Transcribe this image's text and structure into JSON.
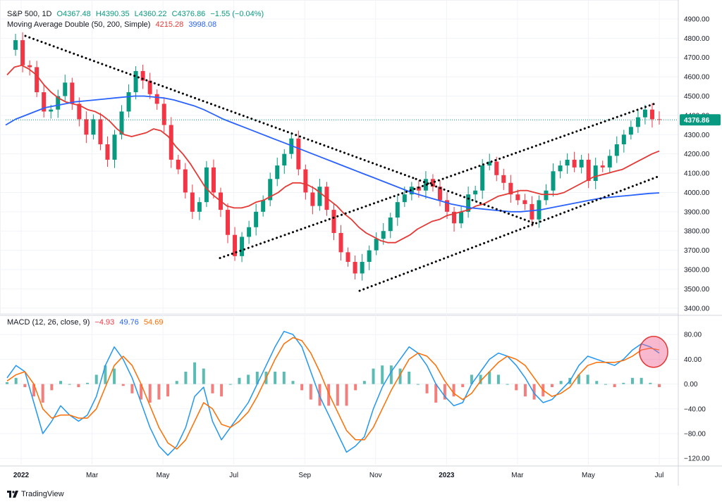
{
  "price_legend": {
    "symbol": "S&P 500, 1D",
    "open": "O4367.48",
    "high": "H4390.35",
    "low": "L4360.22",
    "close": "C4376.86",
    "change": "−1.55 (−0.04%)"
  },
  "ma_legend": {
    "label": "Moving Average Double (50, 200, Simple)",
    "ma50": "4215.28",
    "ma200": "3998.08"
  },
  "macd_legend": {
    "label": "MACD (12, 26, close, 9)",
    "hist": "−4.93",
    "macd": "49.76",
    "signal": "54.69"
  },
  "last_price_label": "4376.86",
  "branding": "TradingView",
  "colors": {
    "up": "#089981",
    "down": "#f23645",
    "ma50": "#e53935",
    "ma200": "#2962ff",
    "macd_line": "#2196f3",
    "signal_line": "#ff6d00",
    "trendline": "#000000",
    "highlight": "#f06292"
  },
  "chart_data": [
    {
      "type": "line",
      "title": "S&P 500, 1D",
      "x_ticks": [
        "2022",
        "Mar",
        "May",
        "Jul",
        "Sep",
        "Nov",
        "2023",
        "Mar",
        "May",
        "Jul"
      ],
      "y_ticks": [
        "4900.00",
        "4800.00",
        "4700.00",
        "4600.00",
        "4500.00",
        "4400.00",
        "4300.00",
        "4200.00",
        "4100.00",
        "4000.00",
        "3900.00",
        "3800.00",
        "3700.00",
        "3600.00",
        "3500.00",
        "3400.00"
      ],
      "ylim": [
        3370,
        4940
      ],
      "series": [
        {
          "name": "S&P 500",
          "values": [
            4740,
            4790,
            4660,
            4650,
            4520,
            4420,
            4430,
            4500,
            4570,
            4460,
            4380,
            4300,
            4380,
            4250,
            4170,
            4300,
            4420,
            4520,
            4630,
            4580,
            4510,
            4460,
            4350,
            4170,
            4120,
            4000,
            3900,
            3950,
            4130,
            4000,
            3910,
            3780,
            3670,
            3770,
            3820,
            3900,
            3960,
            4070,
            4140,
            4200,
            4280,
            4120,
            4000,
            3930,
            4030,
            3910,
            3790,
            3690,
            3640,
            3580,
            3640,
            3700,
            3760,
            3800,
            3870,
            3950,
            3990,
            4030,
            4010,
            4070,
            4030,
            3960,
            3900,
            3840,
            3900,
            3990,
            4010,
            4140,
            4160,
            4090,
            4050,
            3990,
            3960,
            3940,
            3860,
            3960,
            4010,
            4110,
            4140,
            4170,
            4130,
            4170,
            4060,
            4140,
            4130,
            4190,
            4250,
            4300,
            4340,
            4390,
            4430,
            4380,
            4377
          ]
        },
        {
          "name": "",
          "values": [
            4610,
            4650,
            4660,
            4640,
            4610,
            4560,
            4520,
            4490,
            4470,
            4460,
            4450,
            4430,
            4420,
            4400,
            4370,
            4330,
            4300,
            4290,
            4300,
            4310,
            4330,
            4320,
            4290,
            4240,
            4200,
            4150,
            4090,
            4030,
            3990,
            3960,
            3930,
            3920,
            3920,
            3930,
            3950,
            3960,
            3980,
            4000,
            4030,
            4050,
            4050,
            4040,
            4020,
            3990,
            3960,
            3930,
            3890,
            3860,
            3820,
            3790,
            3770,
            3750,
            3740,
            3740,
            3760,
            3780,
            3810,
            3830,
            3850,
            3860,
            3880,
            3890,
            3900,
            3910,
            3930,
            3940,
            3960,
            3980,
            3990,
            4000,
            4010,
            4010,
            4000,
            3990,
            3990,
            3990,
            4000,
            4020,
            4040,
            4060,
            4080,
            4090,
            4100,
            4110,
            4120,
            4140,
            4160,
            4180,
            4200,
            4215
          ]
        },
        {
          "name": "",
          "values": [
            4350,
            4380,
            4400,
            4420,
            4440,
            4450,
            4460,
            4470,
            4475,
            4480,
            4485,
            4490,
            4495,
            4500,
            4500,
            4495,
            4490,
            4480,
            4465,
            4450,
            4430,
            4405,
            4380,
            4360,
            4340,
            4320,
            4300,
            4280,
            4260,
            4240,
            4220,
            4200,
            4180,
            4160,
            4140,
            4120,
            4100,
            4080,
            4060,
            4040,
            4020,
            4000,
            3985,
            3970,
            3955,
            3940,
            3930,
            3920,
            3915,
            3910,
            3905,
            3900,
            3900,
            3905,
            3910,
            3920,
            3930,
            3940,
            3950,
            3960,
            3970,
            3975,
            3980,
            3985,
            3990,
            3995,
            3998
          ]
        }
      ]
    },
    {
      "type": "line",
      "title": "MACD (12, 26, close, 9)",
      "y_ticks": [
        "80.00",
        "40.00",
        "0.00",
        "−40.00",
        "−80.00",
        "−120.00"
      ],
      "ylim": [
        -130,
        95
      ],
      "series": [
        {
          "name": "",
          "values": [
            10,
            30,
            20,
            -30,
            -80,
            -60,
            -35,
            -50,
            -60,
            -50,
            -20,
            30,
            60,
            40,
            10,
            -30,
            -70,
            -100,
            -115,
            -100,
            -70,
            -20,
            -5,
            -60,
            -90,
            -70,
            -50,
            -30,
            0,
            30,
            60,
            85,
            80,
            60,
            20,
            -20,
            -50,
            -80,
            -110,
            -100,
            -85,
            -40,
            -5,
            20,
            40,
            60,
            50,
            30,
            0,
            -20,
            -35,
            -30,
            0,
            20,
            40,
            50,
            45,
            30,
            10,
            -15,
            -30,
            -25,
            -10,
            5,
            30,
            45,
            40,
            35,
            30,
            40,
            55,
            65,
            60,
            50
          ]
        },
        {
          "name": "",
          "values": [
            5,
            15,
            20,
            0,
            -40,
            -55,
            -50,
            -50,
            -55,
            -55,
            -40,
            -5,
            30,
            45,
            30,
            0,
            -35,
            -70,
            -95,
            -105,
            -90,
            -60,
            -30,
            -40,
            -65,
            -70,
            -60,
            -45,
            -20,
            10,
            40,
            65,
            75,
            70,
            50,
            20,
            -15,
            -45,
            -75,
            -90,
            -90,
            -70,
            -40,
            -10,
            15,
            40,
            50,
            45,
            30,
            5,
            -15,
            -25,
            -15,
            5,
            20,
            35,
            45,
            40,
            30,
            10,
            -10,
            -20,
            -15,
            -5,
            15,
            30,
            35,
            35,
            35,
            38,
            45,
            55,
            58,
            55
          ]
        },
        {
          "name": "",
          "values": [
            3,
            10,
            -5,
            -20,
            -30,
            -10,
            5,
            0,
            -5,
            2,
            15,
            30,
            25,
            -3,
            -15,
            -25,
            -30,
            -25,
            -20,
            5,
            20,
            35,
            25,
            -15,
            -20,
            0,
            10,
            15,
            20,
            20,
            20,
            20,
            5,
            -10,
            -25,
            -35,
            -35,
            -35,
            -35,
            -10,
            5,
            25,
            30,
            30,
            25,
            20,
            0,
            -15,
            -30,
            -25,
            -20,
            -5,
            15,
            15,
            20,
            15,
            0,
            -10,
            -20,
            -25,
            -20,
            -5,
            5,
            10,
            15,
            15,
            5,
            0,
            -5,
            2,
            10,
            10,
            2,
            -5
          ]
        }
      ]
    }
  ]
}
